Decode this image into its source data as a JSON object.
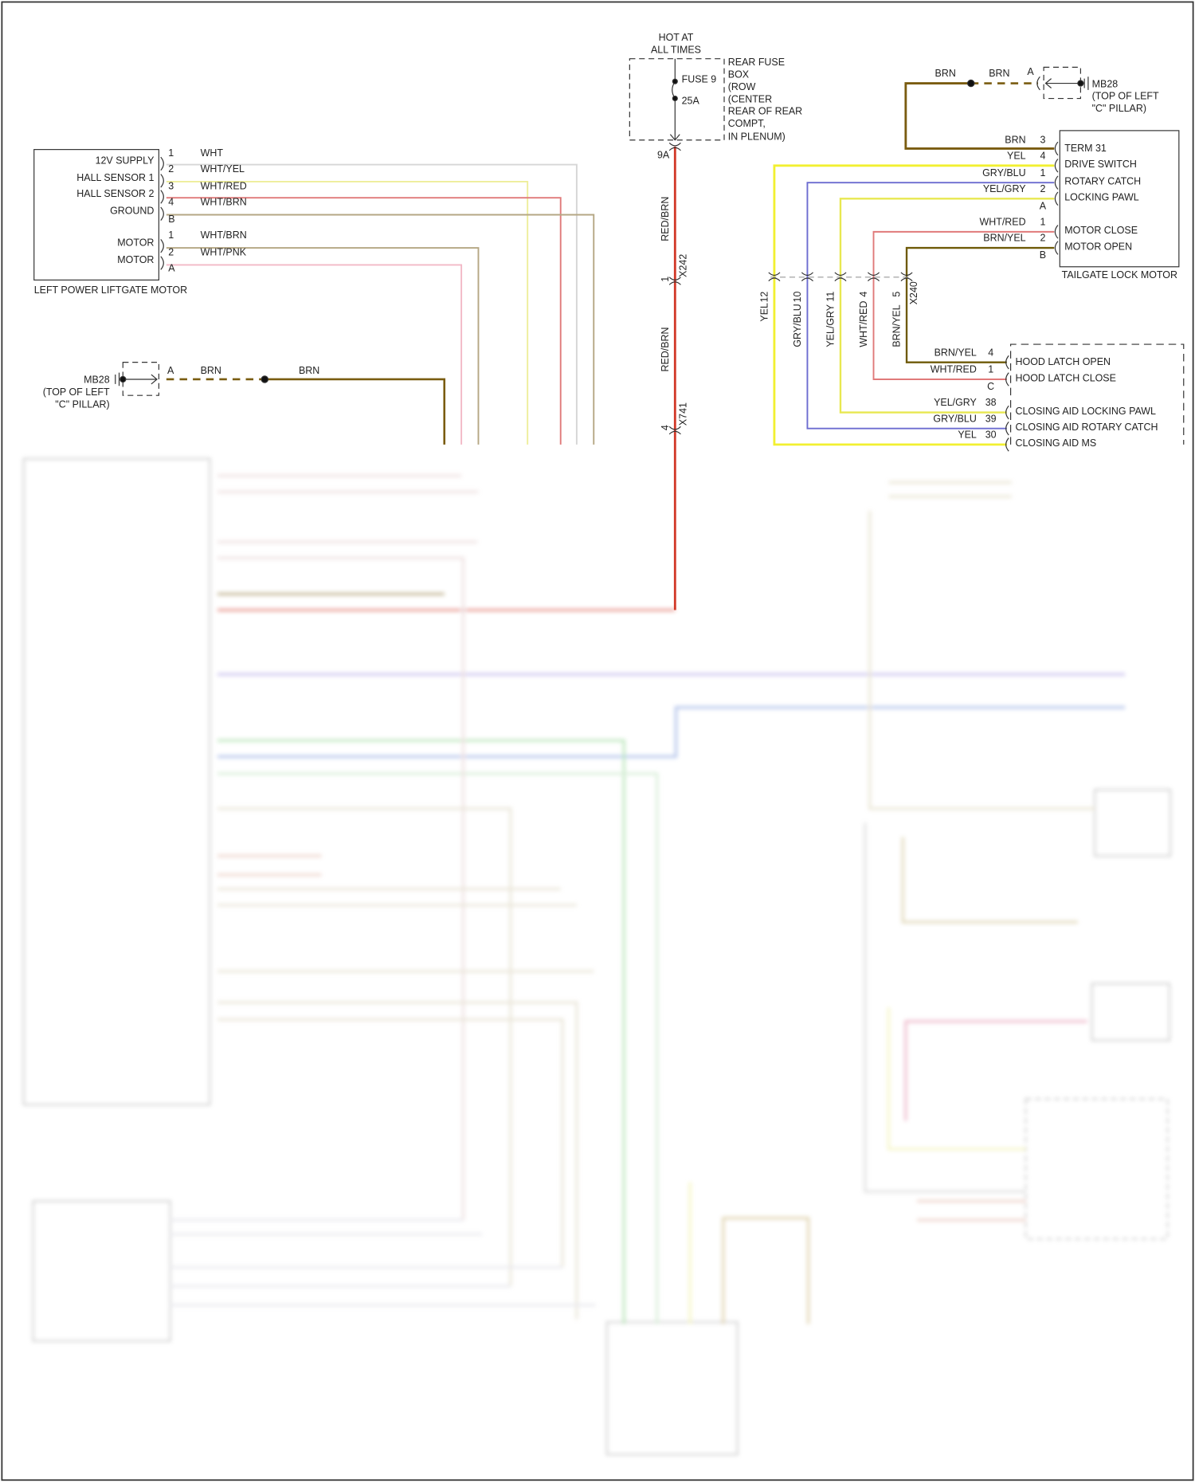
{
  "colors": {
    "wht": "#d6d6d6",
    "wht_yel": "#eeee9a",
    "wht_red": "#e07a7a",
    "wht_brn": "#b5a784",
    "wht_pnk": "#f2b8c6",
    "brn": "#7a5c10",
    "red_brn": "#d23a2a",
    "yel": "#f2f030",
    "gry_blu": "#6c6cd0",
    "yel_gry": "#e8e850",
    "brn_yel": "#6e5a08",
    "blu": "#7090d8",
    "grn": "#80d080"
  },
  "left_motor": {
    "title": "LEFT POWER LIFTGATE MOTOR",
    "labels": [
      "12V SUPPLY",
      "HALL SENSOR 1",
      "HALL SENSOR 2",
      "GROUND",
      "MOTOR",
      "MOTOR"
    ],
    "pins": [
      "1",
      "2",
      "3",
      "4",
      "B",
      "1",
      "2",
      "A"
    ],
    "wires": [
      "WHT",
      "WHT/YEL",
      "WHT/RED",
      "WHT/BRN",
      "WHT/BRN",
      "WHT/PNK"
    ]
  },
  "ground_left": {
    "name": "MB28",
    "location_1": "(TOP OF LEFT",
    "location_2": "\"C\" PILLAR)",
    "pin": "A",
    "wire_1": "BRN",
    "wire_2": "BRN"
  },
  "fuse": {
    "hot_1": "HOT AT",
    "hot_2": "ALL TIMES",
    "fuse_name": "FUSE 9",
    "rating": "25A",
    "box_lines": [
      "REAR FUSE",
      "BOX",
      "(ROW",
      "(CENTER",
      "REAR OF REAR",
      "COMPT,",
      "IN PLENUM)"
    ],
    "out_pin": "9A",
    "wire_1": "RED/BRN",
    "wire_2": "RED/BRN",
    "conn_1": "X242",
    "conn_1_pin": "1",
    "conn_2": "X741",
    "conn_2_pin": "4"
  },
  "ground_right": {
    "name": "MB28",
    "location_1": "(TOP OF LEFT",
    "location_2": "\"C\" PILLAR)",
    "pin": "A",
    "wire_1": "BRN",
    "wire_2": "BRN"
  },
  "tailgate_lock": {
    "title": "TAILGATE LOCK MOTOR",
    "labels": [
      "TERM 31",
      "DRIVE SWITCH",
      "ROTARY CATCH",
      "LOCKING PAWL",
      "MOTOR CLOSE",
      "MOTOR OPEN"
    ],
    "wires": [
      "BRN",
      "YEL",
      "GRY/BLU",
      "YEL/GRY",
      "WHT/RED",
      "BRN/YEL"
    ],
    "pins": [
      "3",
      "4",
      "1",
      "2",
      "A",
      "1",
      "2",
      "B"
    ]
  },
  "x240": {
    "name": "X240",
    "pins": [
      "12",
      "10",
      "11",
      "4",
      "5"
    ],
    "wires": [
      "YEL",
      "GRY/BLU",
      "YEL/GRY",
      "WHT/RED",
      "BRN/YEL"
    ]
  },
  "hood_latch": {
    "labels": [
      "HOOD LATCH OPEN",
      "HOOD LATCH CLOSE",
      "CLOSING AID LOCKING PAWL",
      "CLOSING AID ROTARY CATCH",
      "CLOSING AID MS"
    ],
    "wires": [
      "BRN/YEL",
      "WHT/RED",
      "YEL/GRY",
      "GRY/BLU",
      "YEL"
    ],
    "pins": [
      "4",
      "1",
      "C",
      "38",
      "39",
      "30"
    ]
  }
}
